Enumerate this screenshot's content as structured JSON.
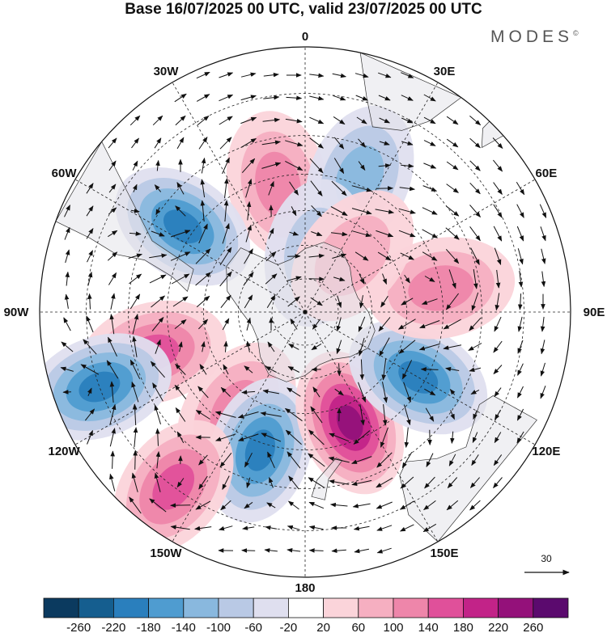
{
  "header": {
    "title": "Base 16/07/2025 00 UTC, valid 23/07/2025 00 UTC",
    "brand": "MODES",
    "brand_mark": "©"
  },
  "map": {
    "projection": "south-polar-stereographic",
    "center": "South Pole",
    "longitude_labels": [
      {
        "text": "0",
        "lon": 0
      },
      {
        "text": "30E",
        "lon": 30
      },
      {
        "text": "60E",
        "lon": 60
      },
      {
        "text": "90E",
        "lon": 90
      },
      {
        "text": "120E",
        "lon": 120
      },
      {
        "text": "150E",
        "lon": 150
      },
      {
        "text": "180",
        "lon": 180
      },
      {
        "text": "150W",
        "lon": -150
      },
      {
        "text": "120W",
        "lon": -120
      },
      {
        "text": "90W",
        "lon": -90
      },
      {
        "text": "60W",
        "lon": -60
      },
      {
        "text": "30W",
        "lon": -30
      }
    ],
    "latitude_circles": [
      -80,
      -70,
      -60,
      -50,
      -40,
      -30
    ],
    "land_color": "#e4e4ea",
    "anomaly_centers": [
      {
        "lon": -12,
        "lat": -52,
        "value": 120
      },
      {
        "lon": 22,
        "lat": -48,
        "value": -100
      },
      {
        "lon": -55,
        "lat": -47,
        "value": -180
      },
      {
        "lon": -105,
        "lat": -45,
        "value": 140
      },
      {
        "lon": -145,
        "lat": -55,
        "value": 120
      },
      {
        "lon": -162,
        "lat": -48,
        "value": -200
      },
      {
        "lon": 158,
        "lat": -55,
        "value": 220
      },
      {
        "lon": 120,
        "lat": -52,
        "value": -200
      },
      {
        "lon": 80,
        "lat": -50,
        "value": 120
      },
      {
        "lon": -110,
        "lat": -30,
        "value": -180
      },
      {
        "lon": -143,
        "lat": -30,
        "value": 140
      },
      {
        "lon": 10,
        "lat": -72,
        "value": -60
      },
      {
        "lon": 40,
        "lat": -68,
        "value": 60
      }
    ],
    "vector_reference": {
      "value": "30"
    }
  },
  "colorbar": {
    "colors": [
      "#0b3a5f",
      "#155e8f",
      "#2a7fbd",
      "#4f9cd0",
      "#89b8de",
      "#b9c9e5",
      "#dfdfef",
      "#ffffff",
      "#fbd4da",
      "#f6afc1",
      "#ee86aa",
      "#e0509a",
      "#c22388",
      "#94117a",
      "#5b0a6e"
    ],
    "ticks": [
      "-260",
      "-220",
      "-180",
      "-140",
      "-100",
      "-60",
      "-20",
      "20",
      "60",
      "100",
      "140",
      "180",
      "220",
      "260"
    ]
  }
}
